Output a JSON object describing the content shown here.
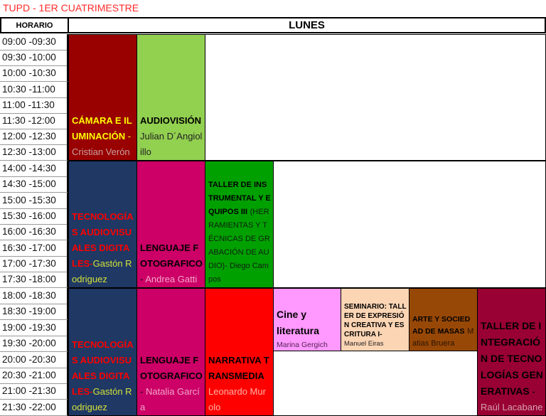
{
  "title": "TUPD - 1ER CUATRIMESTRE",
  "header": {
    "horario": "HORARIO",
    "day": "LUNES"
  },
  "times": [
    "09:00 -09:30",
    "09:30 -10:00",
    "10:00 -10:30",
    "10:30 -11:00",
    "11:00 -11:30",
    "11:30 -12:00",
    "12:00 -12:30",
    "12:30 -13:00",
    "14:00 -14:30",
    "14:30 -15:00",
    "15:00 -15:30",
    "15:30 -16:00",
    "16:00 -16:30",
    "16:30 -17:00",
    "17:00 -17:30",
    "17:30 -18:00",
    "18:00 -18:30",
    "18:30 -19:00",
    "19:00 -19:30",
    "19:30 -20:00",
    "20:00 -20:30",
    "20:30 -21:00",
    "21:00 -21:30",
    "21:30 -22:00"
  ],
  "courses": [
    {
      "title": "CÁMARA E ILUMINACIÓN",
      "sep": " - ",
      "teacher": "Cristian Verón",
      "bg": "#990000",
      "title_color": "#ffff00",
      "teacher_color": "#c8a0a0"
    },
    {
      "title": "AUDIOVISIÓN",
      "sep": " ",
      "teacher": "Julian D´Angiolillo",
      "bg": "#92d050",
      "title_color": "#000000",
      "teacher_color": "#222222"
    },
    {
      "title": "TECNOLOGÍAS AUDIOVISUALES DIGITALES",
      "sep": "-",
      "teacher": "Gastón Rodriguez",
      "bg": "#1f3864",
      "title_color": "#ff0000",
      "teacher_color": "#d4e33a"
    },
    {
      "title": "LENGUAJE FOTOGRAFICO",
      "sep": "- ",
      "teacher": "Andrea Gatti",
      "bg": "#cc0066",
      "title_color": "#000000",
      "teacher_color": "#f4a6cc"
    },
    {
      "title": "TALLER DE INSTRUMENTAL Y EQUIPOS III",
      "sep": " ",
      "teacher": "(HERRAMIENTAS Y TÉCNICAS DE GRABACIÓN DE AUDIO)- Diego Campos",
      "bg": "#00a000",
      "title_color": "#000000",
      "teacher_color": "#102010"
    },
    {
      "title": "TECNOLOGÍAS AUDIOVISUALES DIGITALES",
      "sep": "-",
      "teacher": "Gastón Rodriguez",
      "bg": "#1f3864",
      "title_color": "#ff0000",
      "teacher_color": "#d4e33a"
    },
    {
      "title": "LENGUAJE FOTOGRAFICO",
      "sep": "- ",
      "teacher": "Natalia García",
      "bg": "#cc0066",
      "title_color": "#000000",
      "teacher_color": "#f4a6cc"
    },
    {
      "title": "NARRATIVA TRANSMEDIA",
      "sep": " ",
      "teacher": "Leonardo Murolo",
      "bg": "#ff0000",
      "title_color": "#000000",
      "teacher_color": "#ffb3a6"
    },
    {
      "title": "Cine y literatura",
      "sep": "",
      "teacher": "Marina Gergich",
      "bg": "#ff99ff",
      "title_color": "#000000",
      "teacher_color": "#552255"
    },
    {
      "title": "SEMINARIO: TALLER DE EXPRESIÓN CREATIVA Y ESCRITURA I-",
      "sep": "",
      "teacher": "Manuel Eiras",
      "bg": "#fcd5b4",
      "title_color": "#000000",
      "teacher_color": "#222222"
    },
    {
      "title": "ARTE Y SOCIEDAD DE MASAS",
      "sep": " ",
      "teacher": "Matias Bruera",
      "bg": "#974806",
      "title_color": "#000000",
      "teacher_color": "#2a1200"
    },
    {
      "title": "TALLER DE INTEGRACIÓN DE TECNOLOGÍAS GENERATIVAS",
      "sep": " - ",
      "teacher": "Raúl Lacabane",
      "bg": "#990033",
      "title_color": "#000000",
      "teacher_color": "#d9a3b3"
    }
  ]
}
